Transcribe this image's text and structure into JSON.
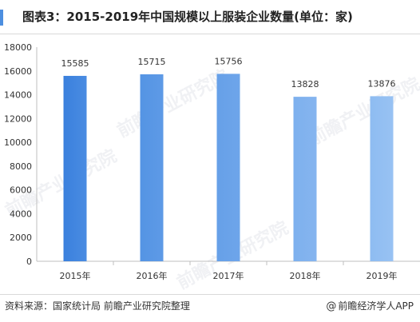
{
  "title": "图表3：2015-2019年中国规模以上服装企业数量(单位：家)",
  "source": "资料来源：国家统计局 前瞻产业研究院整理",
  "brand": "前瞻经济学人APP",
  "brand_symbol": "@",
  "watermark": "前瞻产业研究院",
  "colors": {
    "bar_top": "#3f86e0",
    "bar_bottom": "#9fc4f2",
    "axis": "#bfbfbf",
    "text": "#333333"
  },
  "chart_data": {
    "type": "bar",
    "title": "图表3：2015-2019年中国规模以上服装企业数量(单位：家)",
    "xlabel": "",
    "ylabel": "",
    "categories": [
      "2015年",
      "2016年",
      "2017年",
      "2018年",
      "2019年"
    ],
    "values": [
      15585,
      15715,
      15756,
      13828,
      13876
    ],
    "data_labels": [
      "15585",
      "15715",
      "15756",
      "13828",
      "13876"
    ],
    "ylim": [
      0,
      18000
    ],
    "yticks": [
      0,
      2000,
      4000,
      6000,
      8000,
      10000,
      12000,
      14000,
      16000,
      18000
    ],
    "ytick_labels": [
      "0",
      "2000",
      "4000",
      "6000",
      "8000",
      "10000",
      "12000",
      "14000",
      "16000",
      "18000"
    ],
    "grid": false,
    "legend": "none"
  }
}
